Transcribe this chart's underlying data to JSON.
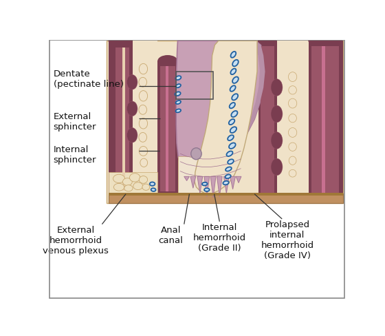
{
  "background": "#ffffff",
  "muscle_dark": "#7a3d50",
  "muscle_mid": "#9a5568",
  "tissue_cream": "#f0e2c8",
  "tissue_fat": "#ede0c0",
  "skin_brown": "#c09060",
  "blue_fill": "#c8dff0",
  "blue_outline": "#2060a0",
  "pink_mucosa": "#c8a0b5",
  "pink_prolapse": "#c8a8b8",
  "pink_light": "#d8b8c8",
  "line_dark": "#5a3a20",
  "ann_line": "#333333",
  "label_fs": 9.5,
  "figsize": [
    5.6,
    4.89
  ],
  "dpi": 100,
  "labels": {
    "dentate": "Dentate\n(pectinate line)",
    "ext_sphincter": "External\nsphincter",
    "int_sphincter": "Internal\nsphincter",
    "ext_hem": "External\nhemorrhoid\nvenous plexus",
    "anal_canal": "Anal\ncanal",
    "int_hem": "Internal\nhemorrhoid\n(Grade II)",
    "prolapsed": "Prolapsed\ninternal\nhemorrhoid\n(Grade IV)"
  }
}
